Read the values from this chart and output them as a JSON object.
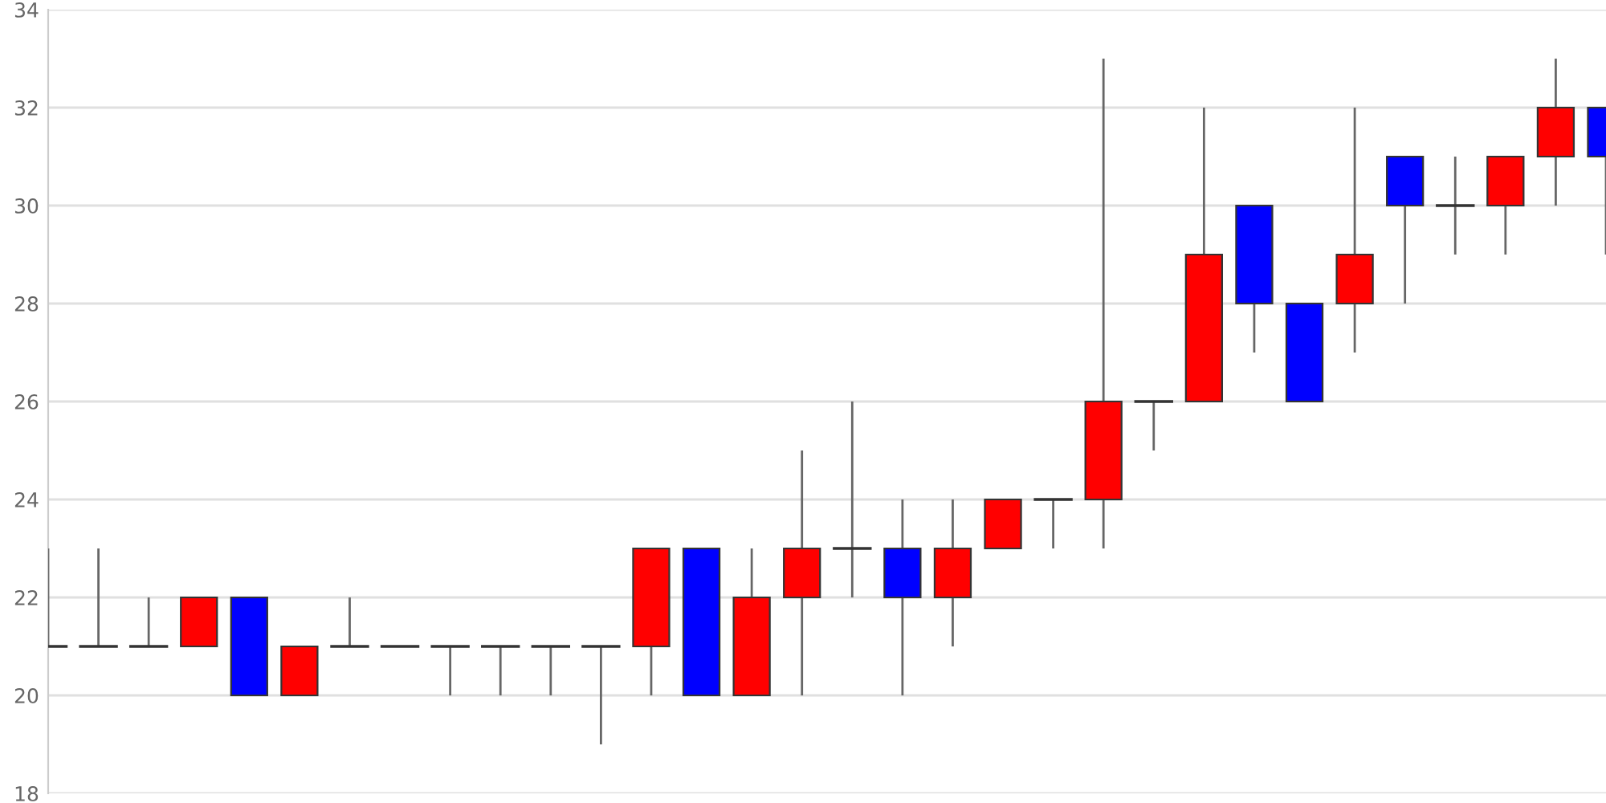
{
  "chart_data": {
    "type": "candlestick",
    "categories": [
      null,
      null,
      null,
      null,
      null,
      null,
      null,
      null,
      null,
      null,
      null,
      null,
      null,
      null,
      null,
      null,
      null,
      null,
      null,
      null,
      null,
      null,
      null,
      null,
      null,
      null,
      null,
      null,
      null,
      null,
      null,
      null
    ],
    "ohlc": [
      [
        21,
        23,
        21,
        21
      ],
      [
        21,
        23,
        21,
        21
      ],
      [
        21,
        22,
        21,
        21
      ],
      [
        21,
        22,
        21,
        22
      ],
      [
        22,
        22,
        20,
        20
      ],
      [
        20,
        21,
        20,
        21
      ],
      [
        21,
        22,
        21,
        21
      ],
      [
        21,
        21,
        21,
        21
      ],
      [
        21,
        21,
        20,
        21
      ],
      [
        21,
        21,
        20,
        21
      ],
      [
        21,
        21,
        20,
        21
      ],
      [
        21,
        21,
        19,
        21
      ],
      [
        21,
        23,
        20,
        23
      ],
      [
        23,
        23,
        20,
        20
      ],
      [
        20,
        23,
        20,
        22
      ],
      [
        22,
        25,
        20,
        23
      ],
      [
        23,
        26,
        22,
        23
      ],
      [
        23,
        24,
        20,
        22
      ],
      [
        22,
        24,
        21,
        23
      ],
      [
        23,
        24,
        23,
        24
      ],
      [
        24,
        24,
        23,
        24
      ],
      [
        24,
        33,
        23,
        26
      ],
      [
        26,
        26,
        25,
        26
      ],
      [
        26,
        32,
        26,
        29
      ],
      [
        30,
        30,
        27,
        28
      ],
      [
        28,
        28,
        26,
        26
      ],
      [
        28,
        32,
        27,
        29
      ],
      [
        31,
        31,
        28,
        30
      ],
      [
        30,
        31,
        29,
        30
      ],
      [
        30,
        31,
        29,
        31
      ],
      [
        31,
        33,
        30,
        32
      ],
      [
        32,
        32,
        29,
        31
      ]
    ],
    "colors": [
      "#333333",
      "#333333",
      "#333333",
      "#ff0000",
      "#0000ff",
      "#ff0000",
      "#333333",
      "#333333",
      "#333333",
      "#333333",
      "#333333",
      "#333333",
      "#ff0000",
      "#0000ff",
      "#ff0000",
      "#ff0000",
      "#333333",
      "#0000ff",
      "#ff0000",
      "#ff0000",
      "#333333",
      "#ff0000",
      "#333333",
      "#ff0000",
      "#0000ff",
      "#0000ff",
      "#ff0000",
      "#0000ff",
      "#333333",
      "#ff0000",
      "#ff0000",
      "#0000ff"
    ],
    "ylim": [
      18,
      34
    ],
    "yticks": [
      18,
      20,
      22,
      24,
      26,
      28,
      30,
      32,
      34
    ],
    "grid": "y",
    "tick_labels": "y"
  }
}
